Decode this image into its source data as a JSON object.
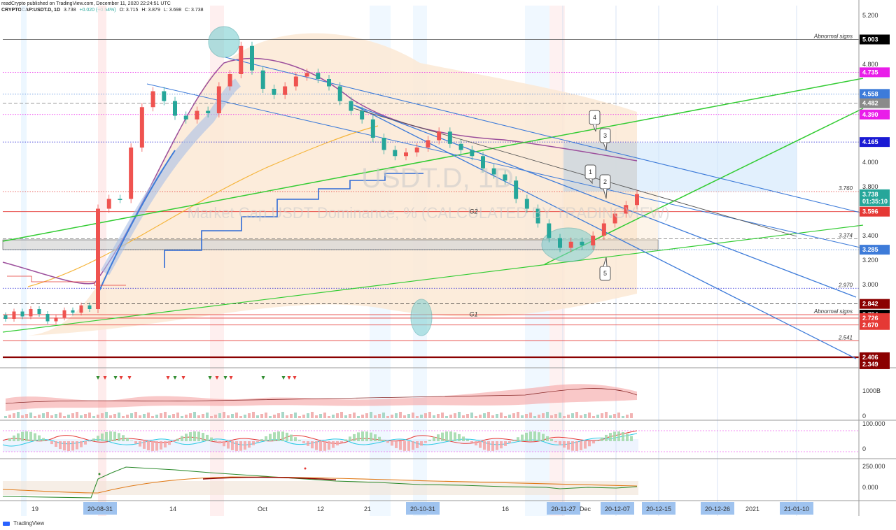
{
  "header": {
    "line1": "readCrypto published on TradingView.com, December 11, 2020 22:24:51 UTC",
    "symbol": "CRYPTOCAP:USDT.D, 1D",
    "last": "3.738",
    "change": "+0.020 (+0.54%)",
    "open": "O: 3.715",
    "high": "H: 3.879",
    "low": "L: 3.698",
    "close": "C: 3.738"
  },
  "watermark": {
    "symbol": "USDT.D, 1D",
    "description": "Market Cap USDT Dominance, % (CALCULATED BY TRADINGVIEW)"
  },
  "footer": {
    "brand": "TradingView"
  },
  "colors": {
    "up": "#26a69a",
    "down": "#ef5350",
    "green_line": "#33cc33",
    "blue_line": "#2f6bd6",
    "purple_ma": "#9c4f9c",
    "orange_ma": "#f5b53c",
    "ribbon_blue": "#4a78d0"
  },
  "chart_data": [
    {
      "type": "line",
      "title": "",
      "ylabel": "",
      "ylim": [
        2.3,
        5.2
      ],
      "y_ticks": [
        "5.200",
        "4.800",
        "4.000",
        "3.800",
        "3.400",
        "3.200",
        "3.000"
      ],
      "x_ticks": [
        "19",
        "20-08-31",
        "14",
        "Oct",
        "12",
        "21",
        "20-10-31",
        "16",
        "20-11-27",
        "Dec",
        "20-12-07",
        "20-12-15",
        "20-12-26",
        "2021",
        "21-01-10"
      ],
      "price_labels": [
        {
          "value": 5.003,
          "text": "5.003",
          "color": "#000000"
        },
        {
          "value": 4.735,
          "text": "4.735",
          "color": "#e91ee9"
        },
        {
          "value": 4.558,
          "text": "4.558",
          "color": "#3d7bd9"
        },
        {
          "value": 4.482,
          "text": "4.482",
          "color": "#8a8a8a"
        },
        {
          "value": 4.39,
          "text": "4.390",
          "color": "#e91ee9"
        },
        {
          "value": 4.165,
          "text": "4.165",
          "color": "#1a1ad4"
        },
        {
          "value": 3.738,
          "text": "3.738",
          "color": "#26a69a"
        },
        {
          "value": 3.68,
          "text": "01:35:10",
          "color": "#26a69a"
        },
        {
          "value": 3.596,
          "text": "3.596",
          "color": "#e53935"
        },
        {
          "value": 3.285,
          "text": "3.285",
          "color": "#3d7bd9"
        },
        {
          "value": 2.842,
          "text": "2.842",
          "color": "#8b0000"
        },
        {
          "value": 2.754,
          "text": "2.754",
          "color": "#000000"
        },
        {
          "value": 2.726,
          "text": "2.726",
          "color": "#e53935"
        },
        {
          "value": 2.67,
          "text": "2.670",
          "color": "#e53935"
        },
        {
          "value": 2.406,
          "text": "2.406",
          "color": "#8b0000"
        },
        {
          "value": 2.349,
          "text": "2.349",
          "color": "#8b0000"
        }
      ],
      "level_lines": [
        {
          "value": 5.003,
          "color": "#555555",
          "style": "solid"
        },
        {
          "value": 4.735,
          "color": "#e91ee9",
          "style": "dotted"
        },
        {
          "value": 4.558,
          "color": "#3d7bd9",
          "style": "dotted"
        },
        {
          "value": 4.482,
          "color": "#777777",
          "style": "dashed"
        },
        {
          "value": 4.39,
          "color": "#e91ee9",
          "style": "dotted"
        },
        {
          "value": 4.165,
          "color": "#1a1ad4",
          "style": "dotted"
        },
        {
          "value": 3.76,
          "color": "#e53935",
          "style": "dotted"
        },
        {
          "value": 3.596,
          "color": "#e53935",
          "style": "solid"
        },
        {
          "value": 3.374,
          "color": "#888888",
          "style": "dashed"
        },
        {
          "value": 3.285,
          "color": "#3d7bd9",
          "style": "dotted"
        },
        {
          "value": 2.97,
          "color": "#1a1ad4",
          "style": "dotted"
        },
        {
          "value": 2.842,
          "color": "#222222",
          "style": "dashed"
        },
        {
          "value": 2.754,
          "color": "#e53935",
          "style": "solid"
        },
        {
          "value": 2.726,
          "color": "#e53935",
          "style": "solid"
        },
        {
          "value": 2.67,
          "color": "#e53935",
          "style": "solid"
        },
        {
          "value": 2.541,
          "color": "#e53935",
          "style": "solid"
        },
        {
          "value": 2.406,
          "color": "#8b0000",
          "style": "solid"
        }
      ],
      "level_texts": [
        {
          "value": 5.003,
          "text": "Abnormal signs"
        },
        {
          "value": 3.76,
          "text": "3.760"
        },
        {
          "value": 3.374,
          "text": "3.374"
        },
        {
          "value": 2.97,
          "text": "2.970"
        },
        {
          "value": 2.754,
          "text": "Abnormal signs"
        },
        {
          "value": 2.541,
          "text": "2.541"
        }
      ],
      "pattern_labels": [
        {
          "text": "G2",
          "x": 0.545,
          "y": 3.58
        },
        {
          "text": "G1",
          "x": 0.545,
          "y": 2.74
        }
      ],
      "callouts": [
        "1",
        "2",
        "3",
        "4",
        "5"
      ],
      "close_series": [
        3.62,
        3.7,
        3.7,
        4.12,
        4.45,
        4.58,
        4.5,
        4.38,
        4.35,
        4.42,
        4.4,
        4.62,
        4.72,
        4.95,
        4.75,
        4.6,
        4.55,
        4.62,
        4.7,
        4.73,
        4.68,
        4.62,
        4.5,
        4.42,
        4.35,
        4.2,
        4.1,
        4.05,
        4.08,
        4.12,
        4.18,
        4.25,
        4.15,
        4.1,
        4.05,
        3.95,
        3.9,
        3.85,
        3.7,
        3.62,
        3.5,
        3.38,
        3.3,
        3.35,
        3.32,
        3.4,
        3.5,
        3.58,
        3.65,
        3.74
      ]
    },
    {
      "type": "area",
      "title": "",
      "y_ticks": [
        "1000B",
        "0"
      ]
    },
    {
      "type": "line",
      "title": "",
      "y_ticks": [
        "100.000",
        "0"
      ]
    },
    {
      "type": "line",
      "title": "",
      "y_ticks": [
        "250.000",
        "0.000"
      ]
    }
  ]
}
